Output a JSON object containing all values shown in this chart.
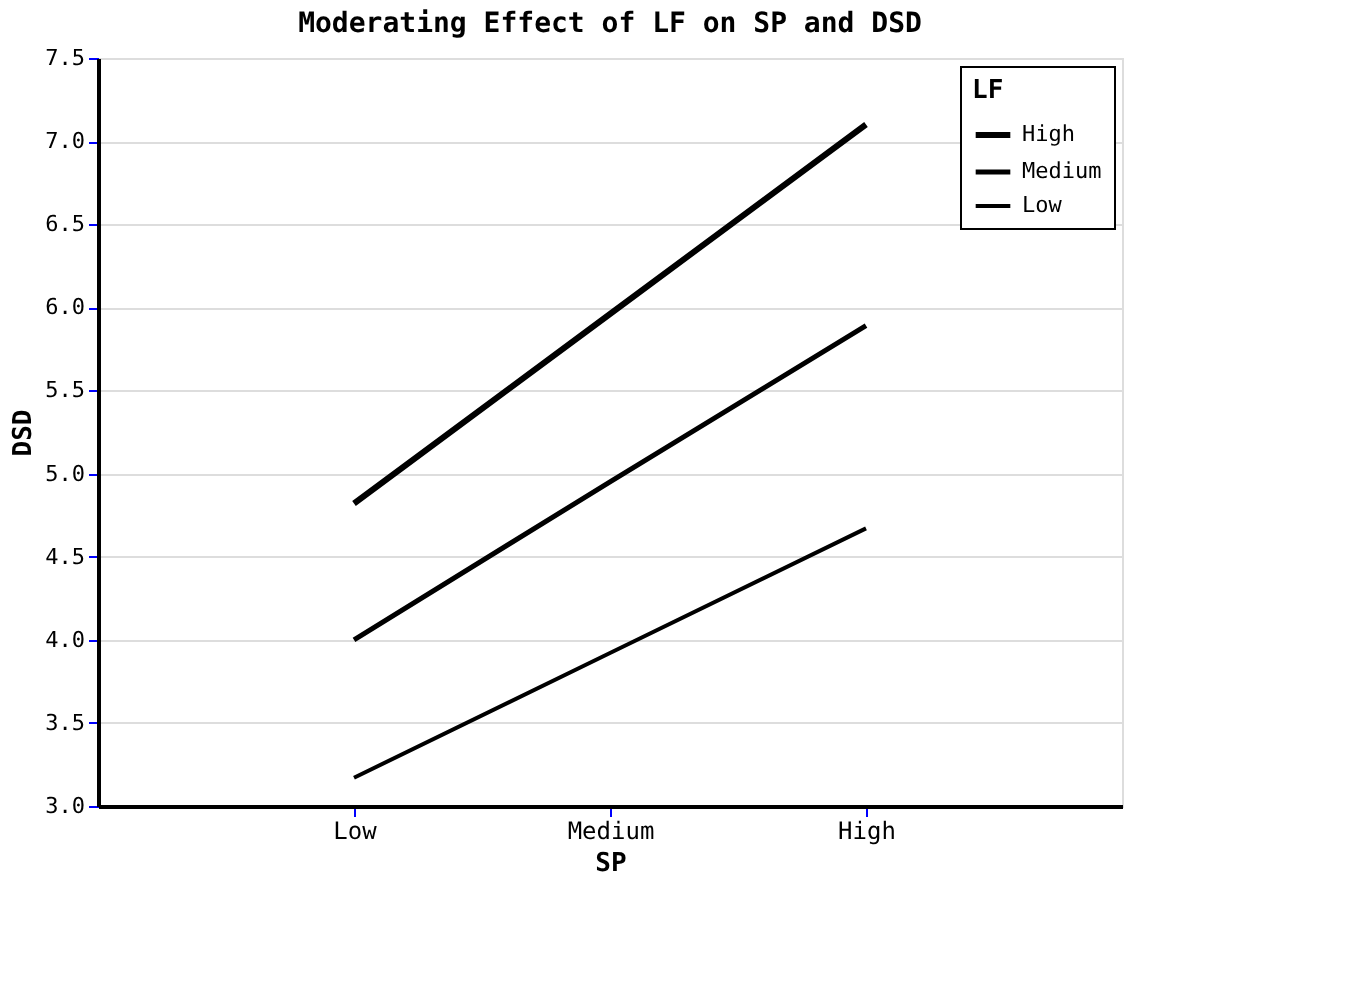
{
  "chart_data": {
    "type": "line",
    "title": "Moderating Effect of LF on SP and DSD",
    "xlabel": "SP",
    "ylabel": "DSD",
    "legend_title": "LF",
    "categories": [
      "Low",
      "Medium",
      "High"
    ],
    "series": [
      {
        "name": "High",
        "color": "#000000",
        "values": [
          4.82,
          5.96,
          7.1
        ]
      },
      {
        "name": "Medium",
        "color": "#000000",
        "values": [
          4.0,
          4.95,
          5.89
        ]
      },
      {
        "name": "Low",
        "color": "#000000",
        "values": [
          3.17,
          3.92,
          4.67
        ]
      }
    ],
    "ylim": [
      3.0,
      7.5
    ],
    "yticks": [
      {
        "value": 3.0,
        "label": "3.0"
      },
      3.5,
      {
        "value": 4.0,
        "label": "4.0"
      },
      4.5,
      {
        "value": 5.0,
        "label": "5.0"
      },
      5.5,
      {
        "value": 6.0,
        "label": "6.0"
      },
      6.5,
      {
        "value": 7.0,
        "label": "7.0"
      },
      7.5
    ],
    "grid": "y",
    "legend": "top right",
    "marker": "none",
    "line_style": "solid"
  }
}
